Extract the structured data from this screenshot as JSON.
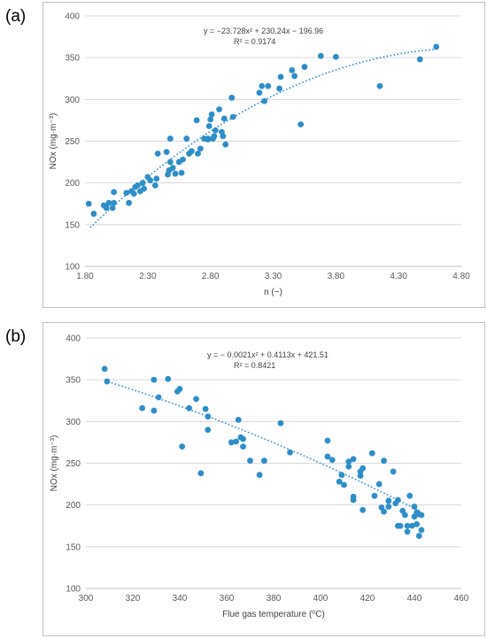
{
  "chart_data": [
    {
      "type": "scatter",
      "panel_label": "(a)",
      "xlabel": "n (−)",
      "ylabel": "NOx  (mg·m⁻³)",
      "xlim": [
        1.8,
        4.8
      ],
      "ylim": [
        100,
        400
      ],
      "xticks": [
        "1.80",
        "2.30",
        "2.80",
        "3.30",
        "3.80",
        "4.30",
        "4.80"
      ],
      "yticks": [
        "100",
        "150",
        "200",
        "250",
        "300",
        "350",
        "400"
      ],
      "grid": "horizontal",
      "marker_color": "#2e8fc8",
      "equation": "y = −23.728x² + 230.24x − 196.96",
      "r_squared": "R² = 0.9174",
      "trendline": {
        "type": "polynomial",
        "a": -23.728,
        "b": 230.24,
        "c": -196.96,
        "x_range": [
          1.84,
          4.6
        ]
      },
      "points": [
        {
          "x": 1.83,
          "y": 175
        },
        {
          "x": 1.87,
          "y": 163
        },
        {
          "x": 1.95,
          "y": 173
        },
        {
          "x": 1.97,
          "y": 170
        },
        {
          "x": 1.99,
          "y": 176
        },
        {
          "x": 2.02,
          "y": 170
        },
        {
          "x": 2.03,
          "y": 176
        },
        {
          "x": 2.03,
          "y": 189
        },
        {
          "x": 2.13,
          "y": 188
        },
        {
          "x": 2.15,
          "y": 176
        },
        {
          "x": 2.17,
          "y": 190
        },
        {
          "x": 2.19,
          "y": 187
        },
        {
          "x": 2.2,
          "y": 195
        },
        {
          "x": 2.22,
          "y": 197
        },
        {
          "x": 2.24,
          "y": 190
        },
        {
          "x": 2.26,
          "y": 200
        },
        {
          "x": 2.27,
          "y": 193
        },
        {
          "x": 2.3,
          "y": 207
        },
        {
          "x": 2.32,
          "y": 203
        },
        {
          "x": 2.36,
          "y": 197
        },
        {
          "x": 2.37,
          "y": 205
        },
        {
          "x": 2.38,
          "y": 235
        },
        {
          "x": 2.45,
          "y": 237
        },
        {
          "x": 2.46,
          "y": 210
        },
        {
          "x": 2.47,
          "y": 215
        },
        {
          "x": 2.48,
          "y": 225
        },
        {
          "x": 2.48,
          "y": 253
        },
        {
          "x": 2.5,
          "y": 218
        },
        {
          "x": 2.52,
          "y": 211
        },
        {
          "x": 2.55,
          "y": 225
        },
        {
          "x": 2.57,
          "y": 212
        },
        {
          "x": 2.58,
          "y": 228
        },
        {
          "x": 2.61,
          "y": 253
        },
        {
          "x": 2.63,
          "y": 235
        },
        {
          "x": 2.65,
          "y": 238
        },
        {
          "x": 2.69,
          "y": 275
        },
        {
          "x": 2.7,
          "y": 235
        },
        {
          "x": 2.72,
          "y": 241
        },
        {
          "x": 2.75,
          "y": 253
        },
        {
          "x": 2.78,
          "y": 253
        },
        {
          "x": 2.78,
          "y": 252
        },
        {
          "x": 2.79,
          "y": 268
        },
        {
          "x": 2.8,
          "y": 276
        },
        {
          "x": 2.81,
          "y": 282
        },
        {
          "x": 2.82,
          "y": 253
        },
        {
          "x": 2.83,
          "y": 256
        },
        {
          "x": 2.84,
          "y": 263
        },
        {
          "x": 2.87,
          "y": 288
        },
        {
          "x": 2.89,
          "y": 261
        },
        {
          "x": 2.9,
          "y": 256
        },
        {
          "x": 2.91,
          "y": 277
        },
        {
          "x": 2.92,
          "y": 246
        },
        {
          "x": 2.97,
          "y": 302
        },
        {
          "x": 2.98,
          "y": 279
        },
        {
          "x": 3.19,
          "y": 308
        },
        {
          "x": 3.21,
          "y": 316
        },
        {
          "x": 3.23,
          "y": 298
        },
        {
          "x": 3.26,
          "y": 316
        },
        {
          "x": 3.35,
          "y": 313
        },
        {
          "x": 3.36,
          "y": 327
        },
        {
          "x": 3.45,
          "y": 335
        },
        {
          "x": 3.47,
          "y": 328
        },
        {
          "x": 3.52,
          "y": 270
        },
        {
          "x": 3.55,
          "y": 339
        },
        {
          "x": 3.68,
          "y": 352
        },
        {
          "x": 3.8,
          "y": 351
        },
        {
          "x": 4.15,
          "y": 316
        },
        {
          "x": 4.47,
          "y": 348
        },
        {
          "x": 4.6,
          "y": 363
        }
      ]
    },
    {
      "type": "scatter",
      "panel_label": "(b)",
      "xlabel": "Flue gas temperature (⁰C)",
      "ylabel": "NOx  (mg·m⁻³)",
      "xlim": [
        300,
        460
      ],
      "ylim": [
        100,
        400
      ],
      "xticks": [
        "300",
        "320",
        "340",
        "360",
        "380",
        "400",
        "420",
        "440",
        "460"
      ],
      "yticks": [
        "100",
        "150",
        "200",
        "250",
        "300",
        "350",
        "400"
      ],
      "grid": "horizontal",
      "marker_color": "#2e8fc8",
      "equation": "y = − 0.0021x² + 0.4113x + 421.51",
      "r_squared": "R² = 0.8421",
      "trendline": {
        "type": "polynomial",
        "a": -0.0021,
        "b": 0.4113,
        "c": 421.51,
        "x_range": [
          308,
          443
        ]
      },
      "points": [
        {
          "x": 308,
          "y": 363
        },
        {
          "x": 309,
          "y": 348
        },
        {
          "x": 324,
          "y": 316
        },
        {
          "x": 329,
          "y": 350
        },
        {
          "x": 329,
          "y": 313
        },
        {
          "x": 331,
          "y": 329
        },
        {
          "x": 335,
          "y": 351
        },
        {
          "x": 339,
          "y": 336
        },
        {
          "x": 340,
          "y": 339
        },
        {
          "x": 341,
          "y": 270
        },
        {
          "x": 344,
          "y": 316
        },
        {
          "x": 347,
          "y": 327
        },
        {
          "x": 349,
          "y": 238
        },
        {
          "x": 351,
          "y": 315
        },
        {
          "x": 352,
          "y": 306
        },
        {
          "x": 352,
          "y": 290
        },
        {
          "x": 362,
          "y": 275
        },
        {
          "x": 364,
          "y": 276
        },
        {
          "x": 365,
          "y": 302
        },
        {
          "x": 366,
          "y": 281
        },
        {
          "x": 367,
          "y": 279
        },
        {
          "x": 367,
          "y": 270
        },
        {
          "x": 370,
          "y": 253
        },
        {
          "x": 374,
          "y": 236
        },
        {
          "x": 376,
          "y": 253
        },
        {
          "x": 383,
          "y": 298
        },
        {
          "x": 387,
          "y": 263
        },
        {
          "x": 403,
          "y": 277
        },
        {
          "x": 403,
          "y": 258
        },
        {
          "x": 405,
          "y": 254
        },
        {
          "x": 408,
          "y": 228
        },
        {
          "x": 409,
          "y": 236
        },
        {
          "x": 410,
          "y": 224
        },
        {
          "x": 412,
          "y": 252
        },
        {
          "x": 412,
          "y": 246
        },
        {
          "x": 414,
          "y": 255
        },
        {
          "x": 414,
          "y": 210
        },
        {
          "x": 414,
          "y": 206
        },
        {
          "x": 417,
          "y": 240
        },
        {
          "x": 417,
          "y": 235
        },
        {
          "x": 418,
          "y": 244
        },
        {
          "x": 418,
          "y": 194
        },
        {
          "x": 422,
          "y": 262
        },
        {
          "x": 423,
          "y": 211
        },
        {
          "x": 425,
          "y": 225
        },
        {
          "x": 426,
          "y": 197
        },
        {
          "x": 427,
          "y": 253
        },
        {
          "x": 427,
          "y": 192
        },
        {
          "x": 429,
          "y": 205
        },
        {
          "x": 429,
          "y": 198
        },
        {
          "x": 431,
          "y": 240
        },
        {
          "x": 432,
          "y": 202
        },
        {
          "x": 433,
          "y": 175
        },
        {
          "x": 433,
          "y": 206
        },
        {
          "x": 434,
          "y": 175
        },
        {
          "x": 435,
          "y": 193
        },
        {
          "x": 436,
          "y": 188
        },
        {
          "x": 437,
          "y": 175
        },
        {
          "x": 437,
          "y": 168
        },
        {
          "x": 438,
          "y": 211
        },
        {
          "x": 439,
          "y": 175
        },
        {
          "x": 440,
          "y": 186
        },
        {
          "x": 440,
          "y": 198
        },
        {
          "x": 441,
          "y": 191
        },
        {
          "x": 441,
          "y": 177
        },
        {
          "x": 442,
          "y": 163
        },
        {
          "x": 442,
          "y": 189
        },
        {
          "x": 443,
          "y": 170
        },
        {
          "x": 443,
          "y": 188
        }
      ]
    }
  ]
}
